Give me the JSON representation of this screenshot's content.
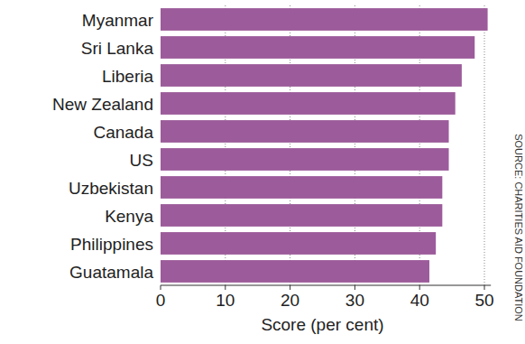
{
  "chart_data": {
    "type": "bar",
    "orientation": "horizontal",
    "categories": [
      "Myanmar",
      "Sri Lanka",
      "Liberia",
      "New Zealand",
      "Canada",
      "US",
      "Uzbekistan",
      "Kenya",
      "Philippines",
      "Guatamala"
    ],
    "values": [
      50.5,
      48.5,
      46.5,
      45.5,
      44.5,
      44.5,
      43.5,
      43.5,
      42.5,
      41.5
    ],
    "color": "#9c5b9b",
    "xlim": [
      0,
      51
    ],
    "xticks": [
      0,
      10,
      20,
      30,
      40,
      50
    ],
    "x_label": "Score (per cent)",
    "source": "SOURCE: CHARITIES AID FOUNDATION",
    "grid": true
  }
}
